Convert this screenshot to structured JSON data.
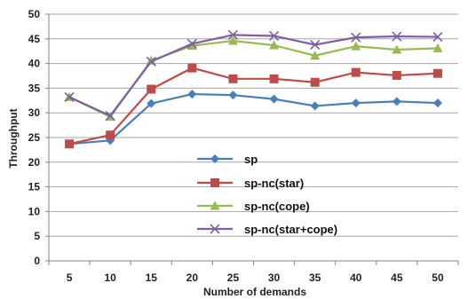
{
  "chart_data": {
    "type": "line",
    "title": "",
    "xlabel": "Number of demands",
    "ylabel": "Throughput",
    "x": [
      "5",
      "10",
      "15",
      "20",
      "25",
      "30",
      "35",
      "40",
      "45",
      "50"
    ],
    "ylim": [
      0,
      50
    ],
    "yticks": [
      "0",
      "5",
      "10",
      "15",
      "20",
      "25",
      "30",
      "35",
      "40",
      "45",
      "50"
    ],
    "grid": "horizontal",
    "legend_placement": "center",
    "series": [
      {
        "name": "sp",
        "color": "#4a7ebb",
        "marker": "diamond",
        "values": [
          23.7,
          24.4,
          31.9,
          33.8,
          33.6,
          32.8,
          31.4,
          32.0,
          32.3,
          32.0
        ]
      },
      {
        "name": "sp-nc(star)",
        "color": "#be4b48",
        "marker": "square",
        "values": [
          23.7,
          25.5,
          34.8,
          39.1,
          36.9,
          36.9,
          36.2,
          38.2,
          37.6,
          38.0
        ]
      },
      {
        "name": "sp-nc(cope)",
        "color": "#98b954",
        "marker": "triangle",
        "values": [
          33.2,
          29.2,
          40.6,
          43.6,
          44.6,
          43.7,
          41.6,
          43.5,
          42.8,
          43.1
        ]
      },
      {
        "name": "sp-nc(star+cope)",
        "color": "#7d60a0",
        "marker": "x",
        "values": [
          33.2,
          29.4,
          40.4,
          44.0,
          45.8,
          45.6,
          43.8,
          45.3,
          45.5,
          45.4
        ]
      }
    ]
  }
}
